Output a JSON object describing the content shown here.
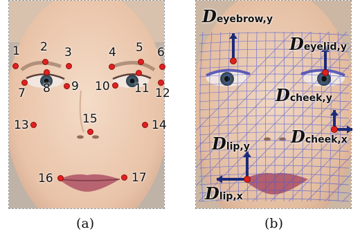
{
  "panel_a": {
    "caption": "(a)",
    "landmarks": [
      {
        "id": "1",
        "label": "1"
      },
      {
        "id": "2",
        "label": "2"
      },
      {
        "id": "3",
        "label": "3"
      },
      {
        "id": "4",
        "label": "4"
      },
      {
        "id": "5",
        "label": "5"
      },
      {
        "id": "6",
        "label": "6"
      },
      {
        "id": "7",
        "label": "7"
      },
      {
        "id": "8",
        "label": "8"
      },
      {
        "id": "9",
        "label": "9"
      },
      {
        "id": "10",
        "label": "10"
      },
      {
        "id": "11",
        "label": "11"
      },
      {
        "id": "12",
        "label": "12"
      },
      {
        "id": "13",
        "label": "13"
      },
      {
        "id": "14",
        "label": "14"
      },
      {
        "id": "15",
        "label": "15"
      },
      {
        "id": "16",
        "label": "16"
      },
      {
        "id": "17",
        "label": "17"
      }
    ]
  },
  "panel_b": {
    "caption": "(b)",
    "displacements": {
      "eyebrow_y": {
        "symbol": "D",
        "sub": "eyebrow,y"
      },
      "eyelid_y": {
        "symbol": "D",
        "sub": "eyelid,y"
      },
      "cheek_y": {
        "symbol": "D",
        "sub": "cheek,y"
      },
      "cheek_x": {
        "symbol": "D",
        "sub": "cheek,x"
      },
      "lip_y": {
        "symbol": "D",
        "sub": "lip,y"
      },
      "lip_x": {
        "symbol": "D",
        "sub": "lip,x"
      }
    }
  },
  "colors": {
    "landmark": "#e0211f",
    "arrow": "#1a2a7a",
    "mesh": "#4a57d6"
  }
}
